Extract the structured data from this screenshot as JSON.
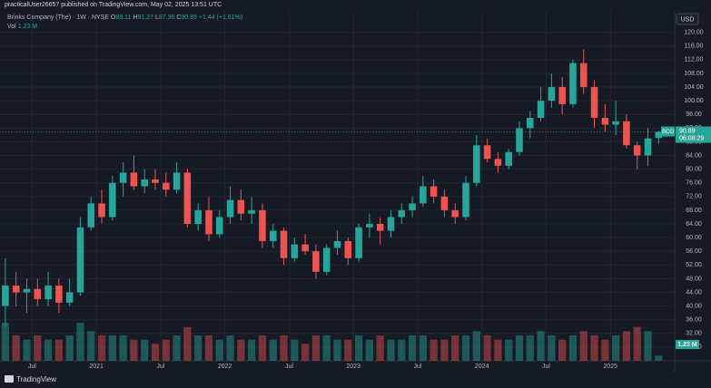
{
  "header": "practicalUser26657 published on TradingView.com, May 02, 2025 13:51 UTC",
  "footer": "TradingView",
  "chart_data": {
    "type": "candlestick",
    "title": "Brinks Company (The) · 1W · NYSE",
    "symbol": "BCO",
    "ohlc_labels": [
      "O",
      "H",
      "L",
      "C"
    ],
    "change_label": "+1.44 (+1.61%)",
    "countdown": "06:08:29",
    "currency": "USD",
    "volume_name": "Vol",
    "volume_label": "1.23 M",
    "up_color": "#26a69a",
    "down_color": "#ef5350",
    "x": [
      "2020-04",
      "2020-05",
      "2020-06",
      "2020-07",
      "2020-08",
      "2020-09",
      "2020-10",
      "2020-11",
      "2020-12",
      "2021-01",
      "2021-02",
      "2021-03",
      "2021-04",
      "2021-05",
      "2021-06",
      "2021-07",
      "2021-08",
      "2021-09",
      "2021-10",
      "2021-11",
      "2021-12",
      "2022-01",
      "2022-02",
      "2022-03",
      "2022-04",
      "2022-05",
      "2022-06",
      "2022-07",
      "2022-08",
      "2022-09",
      "2022-10",
      "2022-11",
      "2022-12",
      "2023-01",
      "2023-02",
      "2023-03",
      "2023-04",
      "2023-05",
      "2023-06",
      "2023-07",
      "2023-08",
      "2023-09",
      "2023-10",
      "2023-11",
      "2023-12",
      "2024-01",
      "2024-02",
      "2024-03",
      "2024-04",
      "2024-05",
      "2024-06",
      "2024-07",
      "2024-08",
      "2024-09",
      "2024-10",
      "2024-11",
      "2024-12",
      "2025-01",
      "2025-02",
      "2025-03",
      "2025-04",
      "2025-05"
    ],
    "open": [
      40,
      46,
      44,
      45,
      42,
      46,
      41,
      44,
      63,
      70,
      66,
      76,
      79,
      75,
      77,
      76,
      74,
      79,
      64,
      68,
      61,
      66,
      71,
      67,
      68,
      59,
      62,
      54,
      58,
      56,
      50,
      57,
      59,
      54,
      63,
      64,
      62,
      66,
      68,
      70,
      75,
      72,
      68,
      66,
      76,
      87,
      83,
      81,
      85,
      92,
      95,
      100,
      104,
      99,
      111,
      104,
      95,
      93,
      94,
      87,
      84,
      89.11
    ],
    "high": [
      54,
      50,
      48,
      48,
      50,
      48,
      48,
      66,
      72,
      74,
      78,
      82,
      84,
      80,
      80,
      79,
      82,
      80,
      70,
      72,
      68,
      75,
      74,
      72,
      70,
      64,
      63,
      60,
      61,
      58,
      58,
      62,
      60,
      64,
      67,
      66,
      68,
      70,
      72,
      78,
      77,
      74,
      70,
      78,
      90,
      89,
      85,
      86,
      94,
      97,
      104,
      108,
      107,
      112,
      115,
      106,
      99,
      100,
      96,
      88,
      92,
      91.27
    ],
    "low": [
      34,
      40,
      38,
      40,
      40,
      38,
      40,
      43,
      62,
      64,
      65,
      72,
      74,
      73,
      74,
      72,
      73,
      63,
      62,
      59,
      60,
      64,
      65,
      64,
      57,
      57,
      52,
      53,
      55,
      48,
      49,
      55,
      52,
      53,
      60,
      58,
      60,
      64,
      66,
      69,
      70,
      66,
      64,
      65,
      75,
      82,
      79,
      80,
      84,
      89,
      94,
      98,
      96,
      98,
      102,
      92,
      91,
      90,
      86,
      80,
      81,
      87.36
    ],
    "close": [
      46,
      44,
      45,
      42,
      46,
      41,
      44,
      63,
      70,
      66,
      76,
      79,
      75,
      77,
      76,
      74,
      79,
      64,
      68,
      61,
      66,
      71,
      67,
      68,
      59,
      62,
      54,
      58,
      56,
      50,
      57,
      59,
      54,
      63,
      64,
      62,
      66,
      68,
      70,
      75,
      72,
      68,
      66,
      76,
      87,
      83,
      81,
      85,
      92,
      95,
      100,
      104,
      99,
      111,
      104,
      95,
      93,
      94,
      87,
      84,
      89,
      90.89
    ],
    "volume": [
      9,
      6,
      5,
      6,
      5,
      5,
      6,
      9,
      7,
      6,
      6,
      6,
      5,
      5,
      4,
      5,
      6,
      8,
      6,
      6,
      5,
      6,
      5,
      5,
      6,
      5,
      6,
      5,
      4,
      6,
      6,
      5,
      5,
      6,
      5,
      6,
      5,
      5,
      6,
      6,
      5,
      5,
      6,
      6,
      7,
      6,
      5,
      5,
      6,
      6,
      7,
      6,
      5,
      6,
      7,
      6,
      5,
      6,
      7,
      8,
      7,
      1.23
    ],
    "xlim": [
      "2020-04",
      "2025-07"
    ],
    "ylim": [
      24,
      126
    ],
    "xticks": [
      {
        "value": "2020-07",
        "label": "Jul"
      },
      {
        "value": "2021-01",
        "label": "2021"
      },
      {
        "value": "2021-07",
        "label": "Jul"
      },
      {
        "value": "2022-01",
        "label": "2022"
      },
      {
        "value": "2022-07",
        "label": "Jul"
      },
      {
        "value": "2023-01",
        "label": "2023"
      },
      {
        "value": "2023-07",
        "label": "Jul"
      },
      {
        "value": "2024-01",
        "label": "2024"
      },
      {
        "value": "2024-07",
        "label": "Jul"
      },
      {
        "value": "2025-01",
        "label": "2025"
      }
    ],
    "yticks": [
      {
        "value": 28,
        "label": "28.00"
      },
      {
        "value": 32,
        "label": "32.00"
      },
      {
        "value": 36,
        "label": "36.00"
      },
      {
        "value": 40,
        "label": "40.00"
      },
      {
        "value": 44,
        "label": "44.00"
      },
      {
        "value": 48,
        "label": "48.00"
      },
      {
        "value": 52,
        "label": "52.00"
      },
      {
        "value": 56,
        "label": "56.00"
      },
      {
        "value": 60,
        "label": "60.00"
      },
      {
        "value": 64,
        "label": "64.00"
      },
      {
        "value": 68,
        "label": "68.00"
      },
      {
        "value": 72,
        "label": "72.00"
      },
      {
        "value": 76,
        "label": "76.00"
      },
      {
        "value": 80,
        "label": "80.00"
      },
      {
        "value": 84,
        "label": "84.00"
      },
      {
        "value": 88,
        "label": "88.00"
      },
      {
        "value": 92,
        "label": "92.00"
      },
      {
        "value": 96,
        "label": "96.00"
      },
      {
        "value": 100,
        "label": "100.00"
      },
      {
        "value": 104,
        "label": "104.00"
      },
      {
        "value": 108,
        "label": "108.00"
      },
      {
        "value": 112,
        "label": "112.00"
      },
      {
        "value": 116,
        "label": "116.00"
      },
      {
        "value": 120,
        "label": "120.00"
      }
    ],
    "grid": true
  }
}
